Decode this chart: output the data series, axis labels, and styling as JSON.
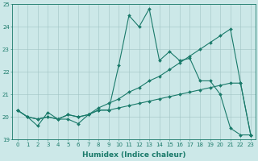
{
  "title": "",
  "xlabel": "Humidex (Indice chaleur)",
  "background_color": "#cce8e8",
  "grid_color": "#a0c4c4",
  "line_color": "#1a7a6a",
  "xmin": -0.5,
  "xmax": 23.5,
  "ymin": 19,
  "ymax": 25,
  "yticks": [
    19,
    20,
    21,
    22,
    23,
    24,
    25
  ],
  "xticks": [
    0,
    1,
    2,
    3,
    4,
    5,
    6,
    7,
    8,
    9,
    10,
    11,
    12,
    13,
    14,
    15,
    16,
    17,
    18,
    19,
    20,
    21,
    22,
    23
  ],
  "line1_x": [
    0,
    1,
    2,
    3,
    4,
    5,
    6,
    7,
    8,
    9,
    10,
    11,
    12,
    13,
    14,
    15,
    16,
    17,
    18,
    19,
    20,
    21,
    22,
    23
  ],
  "line1_y": [
    20.3,
    20.0,
    19.6,
    20.2,
    19.9,
    19.9,
    19.7,
    20.1,
    20.3,
    20.3,
    22.3,
    24.5,
    24.0,
    24.8,
    22.5,
    22.9,
    22.5,
    22.6,
    21.6,
    21.6,
    21.0,
    19.5,
    19.2,
    19.2
  ],
  "line2_x": [
    0,
    1,
    2,
    3,
    4,
    5,
    6,
    7,
    8,
    9,
    10,
    11,
    12,
    13,
    14,
    15,
    16,
    17,
    18,
    19,
    20,
    21,
    22,
    23
  ],
  "line2_y": [
    20.3,
    20.0,
    19.9,
    20.0,
    19.9,
    20.1,
    20.0,
    20.1,
    20.4,
    20.6,
    20.8,
    21.1,
    21.3,
    21.6,
    21.8,
    22.1,
    22.4,
    22.7,
    23.0,
    23.3,
    23.6,
    23.9,
    21.5,
    19.2
  ],
  "line3_x": [
    0,
    1,
    2,
    3,
    4,
    5,
    6,
    7,
    8,
    9,
    10,
    11,
    12,
    13,
    14,
    15,
    16,
    17,
    18,
    19,
    20,
    21,
    22,
    23
  ],
  "line3_y": [
    20.3,
    20.0,
    19.9,
    20.0,
    19.9,
    20.1,
    20.0,
    20.1,
    20.3,
    20.3,
    20.4,
    20.5,
    20.6,
    20.7,
    20.8,
    20.9,
    21.0,
    21.1,
    21.2,
    21.3,
    21.4,
    21.5,
    21.5,
    19.2
  ],
  "xlabel_fontsize": 6.5,
  "tick_fontsize": 5,
  "lw": 0.8,
  "marker_size": 2.0
}
